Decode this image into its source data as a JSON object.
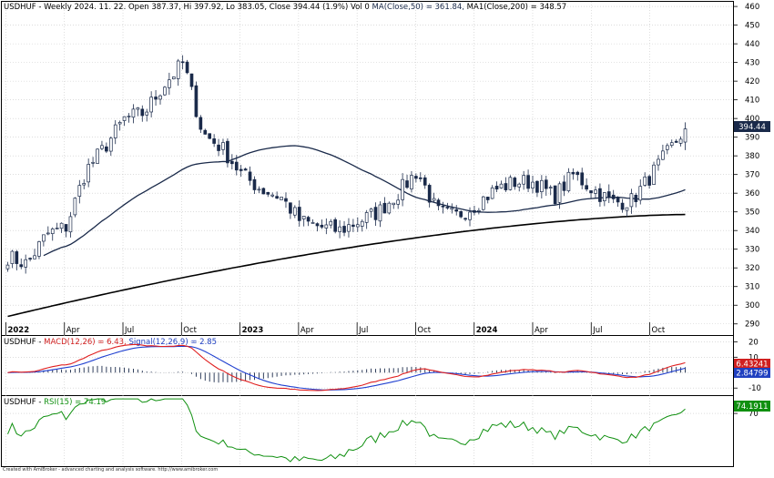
{
  "price_pane": {
    "header": {
      "symbol_text": "USDHUF - Weekly 2024. 11. 22. Open 387.37, Hi 397.92, Lo 383.05, Close 394.44 (1.9%) Vol 0 ",
      "ma50_text": "MA(Close,50) = 361.84, ",
      "ma200_text": "MA1(Close,200) = 348.57"
    },
    "last_price_label": "394.44",
    "y_ticks": [
      "460",
      "450",
      "440",
      "430",
      "420",
      "410",
      "400",
      "390",
      "380",
      "370",
      "360",
      "350",
      "340",
      "330",
      "320",
      "310",
      "300",
      "290"
    ],
    "x_ticks": [
      "2022",
      "Apr",
      "Jul",
      "Oct",
      "2023",
      "Apr",
      "Jul",
      "Oct",
      "2024",
      "Apr",
      "Jul",
      "Oct"
    ]
  },
  "macd_pane": {
    "header": {
      "symbol_text": "USDHUF - ",
      "macd_text": "MACD(12,26) = 6.43, ",
      "signal_text": "Signal(12,26,9) = 2.85"
    },
    "y_ticks": [
      "20",
      "10",
      "0",
      "-10"
    ],
    "macd_label": "6.43241",
    "signal_label": "2.84799"
  },
  "rsi_pane": {
    "header": {
      "symbol_text": "USDHUF - ",
      "rsi_text": "RSI(15) = 74.19"
    },
    "y_ticks": [
      "70"
    ],
    "rsi_label": "74.1911"
  },
  "footer_text": "Created with AmiBroker - advanced charting and analysis software. http://www.amibroker.com",
  "colors": {
    "candle_up": "#ffffff",
    "candle_down": "#1a2a4a",
    "ma50": "#1a2a4a",
    "ma200": "#000000",
    "macd": "#e02020",
    "signal": "#2040d0",
    "histogram": "#1a2a4a",
    "rsi": "#109010",
    "grid": "#c8c8c8",
    "label_price_bg": "#1a2a4a",
    "label_macd_bg": "#d02020",
    "label_signal_bg": "#2040c0",
    "label_rsi_bg": "#109010"
  },
  "chart_data": [
    {
      "type": "candlestick",
      "title": "USDHUF - Weekly",
      "ylim": [
        285,
        462
      ],
      "x_range": [
        "2022-01",
        "2024-11"
      ],
      "keypoints_close": [
        [
          "2022-01",
          326
        ],
        [
          "2022-02",
          322
        ],
        [
          "2022-03",
          338
        ],
        [
          "2022-04",
          342
        ],
        [
          "2022-05",
          372
        ],
        [
          "2022-06",
          385
        ],
        [
          "2022-07",
          400
        ],
        [
          "2022-08",
          403
        ],
        [
          "2022-09",
          418
        ],
        [
          "2022-10",
          430
        ],
        [
          "2022-11",
          392
        ],
        [
          "2022-12",
          384
        ],
        [
          "2023-01",
          370
        ],
        [
          "2023-02",
          362
        ],
        [
          "2023-03",
          358
        ],
        [
          "2023-04",
          345
        ],
        [
          "2023-05",
          342
        ],
        [
          "2023-06",
          340
        ],
        [
          "2023-07",
          345
        ],
        [
          "2023-08",
          350
        ],
        [
          "2023-09",
          360
        ],
        [
          "2023-10",
          372
        ],
        [
          "2023-11",
          350
        ],
        [
          "2023-12",
          348
        ],
        [
          "2024-01",
          354
        ],
        [
          "2024-02",
          362
        ],
        [
          "2024-03",
          366
        ],
        [
          "2024-04",
          366
        ],
        [
          "2024-05",
          358
        ],
        [
          "2024-06",
          370
        ],
        [
          "2024-07",
          362
        ],
        [
          "2024-08",
          355
        ],
        [
          "2024-09",
          356
        ],
        [
          "2024-10",
          370
        ],
        [
          "2024-11",
          394.44
        ]
      ],
      "last": {
        "open": 387.37,
        "high": 397.92,
        "low": 383.05,
        "close": 394.44
      },
      "ma50_last": 361.84,
      "ma200_last": 348.57
    },
    {
      "type": "line",
      "title": "MACD(12,26)",
      "ylim": [
        -14,
        22
      ],
      "series": [
        {
          "name": "MACD(12,26)",
          "last": 6.43
        },
        {
          "name": "Signal(12,26,9)",
          "last": 2.85
        }
      ]
    },
    {
      "type": "line",
      "title": "RSI(15)",
      "series": [
        {
          "name": "RSI(15)",
          "last": 74.19
        }
      ]
    }
  ]
}
